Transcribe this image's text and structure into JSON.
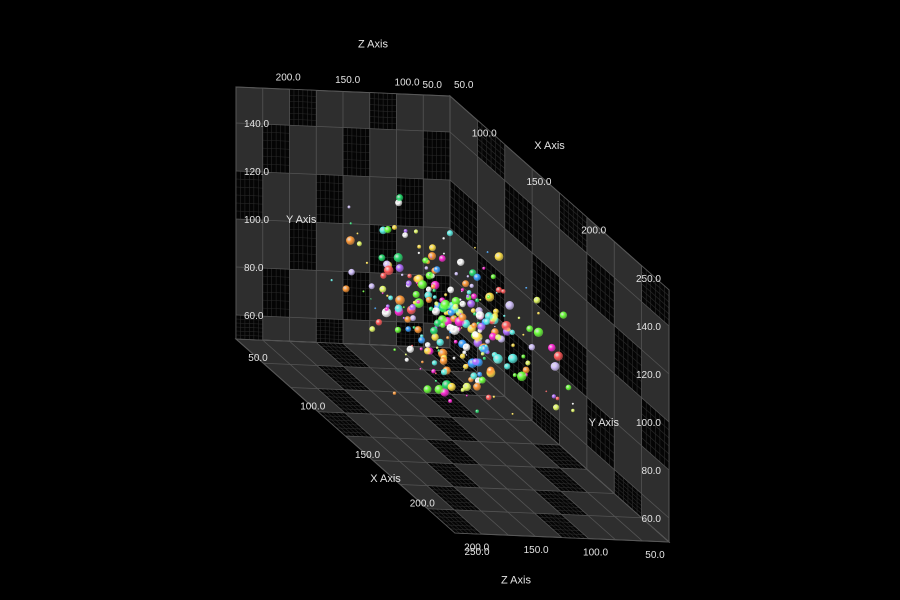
{
  "chart_data": {
    "type": "scatter",
    "subtype": "3d-bubble",
    "theme": {
      "background": "#000000",
      "wall": "#2e2e2e",
      "grid": "#545454",
      "text": "#e4e4e4"
    },
    "axes": {
      "x": {
        "label": "X Axis",
        "range": [
          50,
          250
        ],
        "ticks": [
          "50.0",
          "100.0",
          "150.0",
          "200.0",
          "250.0"
        ]
      },
      "y": {
        "label": "Y Axis",
        "range": [
          50,
          155
        ],
        "ticks": [
          "60.0",
          "80.0",
          "100.0",
          "120.0",
          "140.0"
        ]
      },
      "z": {
        "label": "Z Axis",
        "range": [
          50,
          230
        ],
        "ticks": [
          "50.0",
          "100.0",
          "150.0",
          "200.0"
        ]
      }
    },
    "grid": true,
    "legend": "none",
    "point_count": 300,
    "size_range": [
      1,
      7
    ],
    "palette": [
      "#ff2ad4",
      "#6cff3c",
      "#ffe14a",
      "#3aa0ff",
      "#ff5a5a",
      "#b06bff",
      "#5cf0e6",
      "#ff9a3a",
      "#ffffff",
      "#27d86e",
      "#d4c3ff",
      "#e8ff6a"
    ]
  }
}
